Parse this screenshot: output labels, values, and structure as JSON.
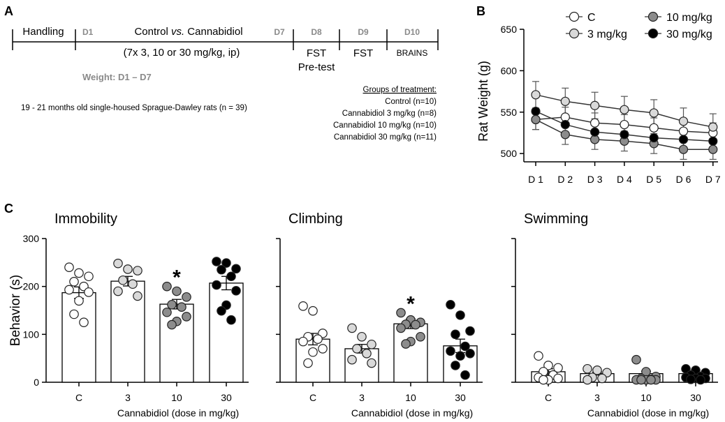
{
  "panel_labels": {
    "a": "A",
    "b": "B",
    "c": "C"
  },
  "timeline": {
    "handling": "Handling",
    "d1": "D1",
    "treatment": "Control vs. Cannabidiol",
    "treatment_pre": "Control ",
    "treatment_vs": "vs.",
    "treatment_post": " Cannabidiol",
    "dosing": "(7x 3, 10 or 30 mg/kg, ip)",
    "d7": "D7",
    "d8": "D8",
    "fst_pretest_1": "FST",
    "fst_pretest_2": "Pre-test",
    "d9": "D9",
    "fst": "FST",
    "d10": "D10",
    "brains": "BRAINS",
    "weight": "Weight: D1 – D7",
    "subjects": "19 - 21 months old single-housed Sprague-Dawley rats (n = 39)",
    "groups_title": "Groups of treatment:",
    "groups": [
      "Control (n=10)",
      "Cannabidiol 3 mg/kg (n=8)",
      "Cannabidiol 10 mg/kg (n=10)",
      "Cannabidiol 30 mg/kg (n=11)"
    ]
  },
  "colors": {
    "control": "#ffffff",
    "dose3": "#d9d9d9",
    "dose10": "#8c8c8c",
    "dose30": "#000000",
    "gray_text": "#8a8a8a",
    "axis": "#000000"
  },
  "chart_data": [
    {
      "type": "line",
      "panel": "B",
      "ylabel": "Rat Weight (g)",
      "ylim": [
        490,
        650
      ],
      "yticks": [
        500,
        550,
        600,
        650
      ],
      "categories": [
        "D 1",
        "D 2",
        "D 3",
        "D 4",
        "D 5",
        "D 6",
        "D 7"
      ],
      "legend_position": "top",
      "series": [
        {
          "name": "C",
          "color": "#ffffff",
          "values": [
            541,
            544,
            537,
            535,
            531,
            527,
            525
          ],
          "sem": [
            12,
            12,
            12,
            12,
            12,
            12,
            12
          ]
        },
        {
          "name": "3 mg/kg",
          "color": "#d9d9d9",
          "values": [
            571,
            563,
            558,
            553,
            549,
            539,
            532
          ],
          "sem": [
            16,
            16,
            16,
            16,
            16,
            16,
            16
          ]
        },
        {
          "name": "10 mg/kg",
          "color": "#8c8c8c",
          "values": [
            541,
            523,
            517,
            515,
            512,
            505,
            505
          ],
          "sem": [
            12,
            12,
            12,
            12,
            12,
            12,
            12
          ]
        },
        {
          "name": "30 mg/kg",
          "color": "#000000",
          "values": [
            551,
            535,
            526,
            523,
            519,
            517,
            515
          ],
          "sem": [
            0,
            0,
            0,
            0,
            0,
            0,
            0
          ]
        }
      ]
    },
    {
      "type": "bar",
      "panel": "C",
      "title": "Immobility",
      "ylabel": "Behavior (s)",
      "xlabel": "Cannabidiol (dose in mg/kg)",
      "ylim": [
        0,
        300
      ],
      "yticks": [
        0,
        100,
        200,
        300
      ],
      "categories": [
        "C",
        "3",
        "10",
        "30"
      ],
      "values": [
        187,
        211,
        163,
        207
      ],
      "sem": [
        12,
        10,
        10,
        14
      ],
      "significant": [
        false,
        false,
        true,
        false
      ],
      "point_colors": [
        "#ffffff",
        "#d9d9d9",
        "#8c8c8c",
        "#000000"
      ],
      "points": [
        [
          240,
          228,
          221,
          210,
          200,
          193,
          188,
          170,
          142,
          125
        ],
        [
          248,
          236,
          233,
          213,
          205,
          190,
          180
        ],
        [
          200,
          190,
          178,
          162,
          157,
          146,
          137,
          127,
          120
        ],
        [
          252,
          249,
          237,
          235,
          221,
          203,
          191,
          161,
          149,
          130
        ]
      ]
    },
    {
      "type": "bar",
      "panel": "C",
      "title": "Climbing",
      "xlabel": "Cannabidiol (dose in mg/kg)",
      "ylim": [
        0,
        300
      ],
      "yticks": [
        0,
        100,
        200,
        300
      ],
      "categories": [
        "C",
        "3",
        "10",
        "30"
      ],
      "values": [
        90,
        70,
        122,
        76
      ],
      "sem": [
        12,
        9,
        10,
        14
      ],
      "significant": [
        false,
        false,
        true,
        false
      ],
      "point_colors": [
        "#ffffff",
        "#d9d9d9",
        "#8c8c8c",
        "#000000"
      ],
      "points": [
        [
          159,
          149,
          102,
          95,
          90,
          85,
          70,
          63,
          40
        ],
        [
          113,
          95,
          79,
          70,
          60,
          47,
          40
        ],
        [
          145,
          130,
          125,
          121,
          120,
          113,
          95,
          85,
          80
        ],
        [
          162,
          140,
          107,
          100,
          75,
          65,
          60,
          55,
          35,
          15
        ]
      ]
    },
    {
      "type": "bar",
      "panel": "C",
      "title": "Swimming",
      "xlabel": "Cannabidiol (dose in mg/kg)",
      "ylim": [
        0,
        300
      ],
      "yticks": [
        0,
        100,
        200,
        300
      ],
      "categories": [
        "C",
        "3",
        "10",
        "30"
      ],
      "values": [
        22,
        18,
        18,
        18
      ],
      "sem": [
        6,
        3,
        5,
        2
      ],
      "significant": [
        false,
        false,
        false,
        false
      ],
      "point_colors": [
        "#ffffff",
        "#d9d9d9",
        "#8c8c8c",
        "#000000"
      ],
      "points": [
        [
          55,
          35,
          30,
          22,
          15,
          10,
          8,
          5,
          5
        ],
        [
          28,
          25,
          20,
          10,
          8,
          5
        ],
        [
          47,
          22,
          12,
          8,
          6,
          5,
          5,
          5,
          5,
          5
        ],
        [
          28,
          25,
          20,
          15,
          12,
          10,
          8,
          8,
          6,
          5
        ]
      ]
    }
  ]
}
